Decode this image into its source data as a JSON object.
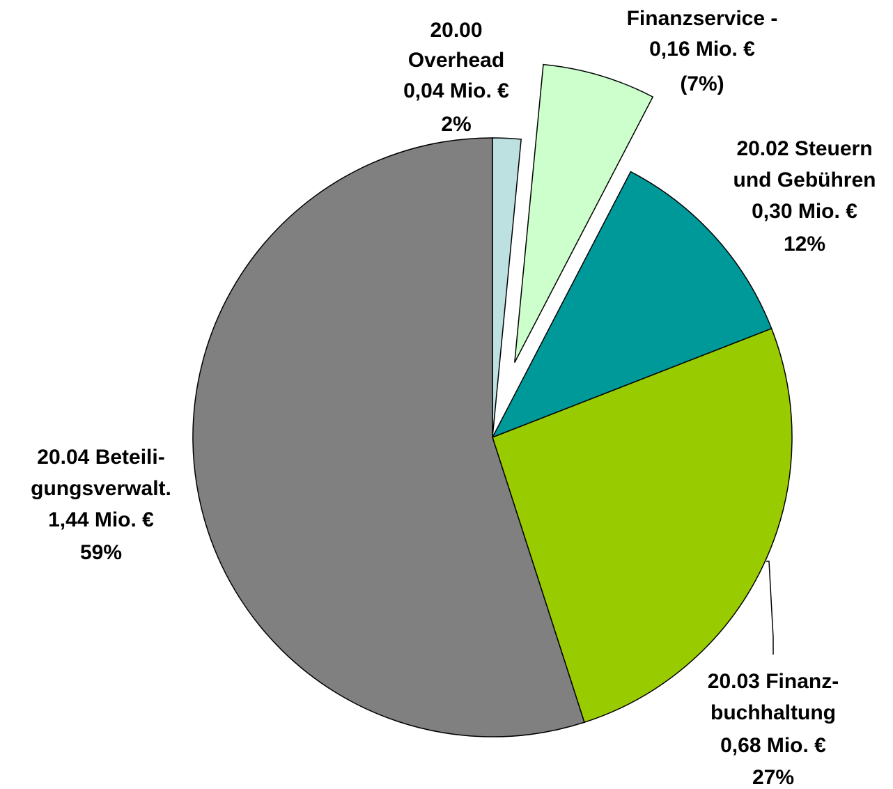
{
  "chart_data": {
    "type": "pie",
    "categories": [
      [
        "20.00",
        "Overhead"
      ],
      [
        "Finanzservice -"
      ],
      [
        "20.02 Steuern",
        "und Gebühren"
      ],
      [
        "20.03 Finanz-",
        "buchhaltung"
      ],
      [
        "20.04 Beteili-",
        "gungsverwalt."
      ]
    ],
    "values": [
      0.04,
      0.16,
      0.3,
      0.68,
      1.44
    ],
    "value_labels": [
      "0,04 Mio. €",
      "0,16 Mio. €",
      "0,30 Mio. €",
      "0,68 Mio. €",
      "1,44 Mio. €"
    ],
    "percent_labels": [
      "2%",
      "(7%)",
      "12%",
      "27%",
      "59%"
    ],
    "colors": [
      "#bde0e0",
      "#ccffcc",
      "#009999",
      "#99cc00",
      "#808080"
    ],
    "explode": [
      false,
      true,
      false,
      false,
      false
    ]
  }
}
